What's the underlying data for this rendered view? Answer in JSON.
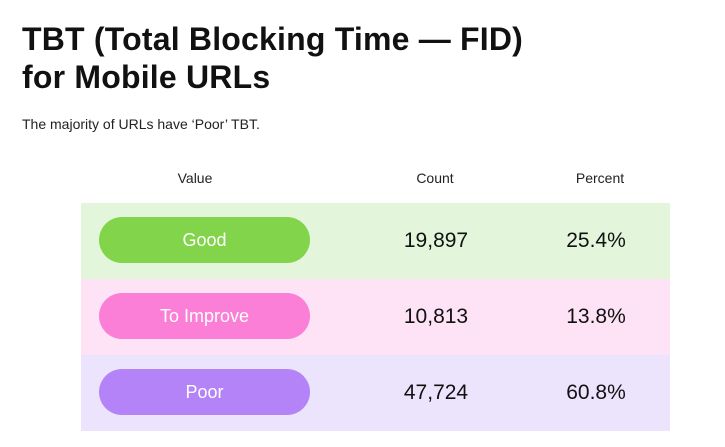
{
  "title_line1": "TBT (Total Blocking Time — FID)",
  "title_line2": "for Mobile URLs",
  "subtitle": "The majority of URLs have ‘Poor’ TBT.",
  "headers": {
    "value": "Value",
    "count": "Count",
    "percent": "Percent"
  },
  "rows": [
    {
      "label": "Good",
      "count": "19,897",
      "percent": "25.4%",
      "pill_color": "#82d44a",
      "row_color": "#e3f6dc"
    },
    {
      "label": "To Improve",
      "count": "10,813",
      "percent": "13.8%",
      "pill_color": "#fb7fd6",
      "row_color": "#fde3f5"
    },
    {
      "label": "Poor",
      "count": "47,724",
      "percent": "60.8%",
      "pill_color": "#b483f7",
      "row_color": "#ece4fd"
    }
  ],
  "chart_data": {
    "type": "table",
    "title": "TBT (Total Blocking Time — FID) for Mobile URLs",
    "subtitle": "The majority of URLs have ‘Poor’ TBT.",
    "columns": [
      "Value",
      "Count",
      "Percent"
    ],
    "categories": [
      "Good",
      "To Improve",
      "Poor"
    ],
    "series": [
      {
        "name": "Count",
        "values": [
          19897,
          10813,
          47724
        ]
      },
      {
        "name": "Percent",
        "values": [
          25.4,
          13.8,
          60.8
        ]
      }
    ]
  }
}
